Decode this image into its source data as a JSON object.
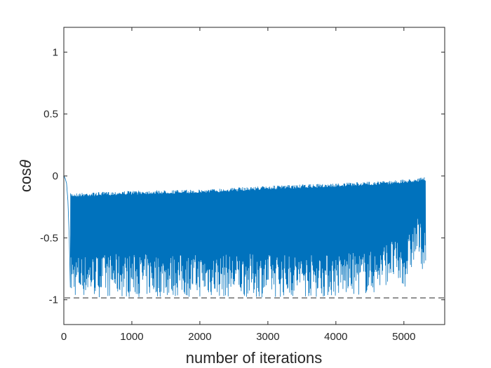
{
  "chart_data": {
    "type": "line",
    "title": "",
    "xlabel": "number of iterations",
    "ylabel_base": "cos",
    "ylabel_symbol": "θ",
    "xlim": [
      0,
      5600
    ],
    "ylim": [
      -1.2,
      1.2
    ],
    "xticks": [
      0,
      1000,
      2000,
      3000,
      4000,
      5000
    ],
    "yticks": [
      -1,
      -0.5,
      0,
      0.5,
      1
    ],
    "xtick_labels": [
      "0",
      "1000",
      "2000",
      "3000",
      "4000",
      "5000"
    ],
    "ytick_labels": [
      "-1",
      "-0.5",
      "0",
      "0.5",
      "1"
    ],
    "grid": false,
    "legend": "none",
    "series": [
      {
        "color": "#0072BD",
        "style": "solid",
        "x_range": [
          0,
          5320
        ],
        "initial_decay": [
          [
            0,
            0.0
          ],
          [
            20,
            -0.02
          ],
          [
            40,
            -0.06
          ],
          [
            60,
            -0.2
          ],
          [
            80,
            -0.5
          ],
          [
            95,
            -0.9
          ]
        ],
        "upper_envelope": [
          [
            100,
            -0.14
          ],
          [
            1000,
            -0.12
          ],
          [
            2000,
            -0.11
          ],
          [
            3000,
            -0.08
          ],
          [
            4000,
            -0.06
          ],
          [
            4700,
            -0.04
          ],
          [
            5000,
            -0.03
          ],
          [
            5320,
            -0.01
          ]
        ],
        "lower_envelope": [
          [
            100,
            -0.98
          ],
          [
            2000,
            -0.98
          ],
          [
            4000,
            -0.98
          ],
          [
            4600,
            -0.95
          ],
          [
            4800,
            -0.85
          ],
          [
            5000,
            -0.92
          ],
          [
            5200,
            -0.65
          ],
          [
            5320,
            -0.82
          ]
        ]
      },
      {
        "color": "#262626",
        "style": "dashed",
        "x": [
          0,
          5600
        ],
        "y": [
          -0.985,
          -0.985
        ]
      }
    ]
  }
}
